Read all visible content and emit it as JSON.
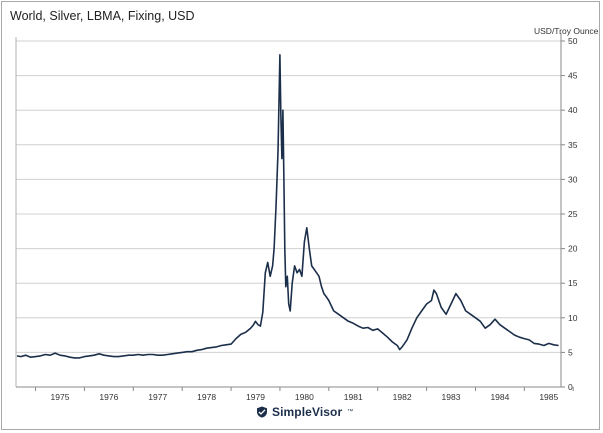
{
  "chart_data": {
    "type": "line",
    "title": "World, Silver, LBMA, Fixing, USD",
    "ylabel": "USD/Troy Ounce",
    "xlabel": "",
    "xlim": [
      1974.6,
      1985.75
    ],
    "ylim": [
      0,
      50
    ],
    "y_axis_side": "right",
    "grid": true,
    "legend": "none",
    "line_color": "#1c2f4a",
    "x_ticks": [
      1975,
      1976,
      1977,
      1978,
      1979,
      1980,
      1981,
      1982,
      1983,
      1984,
      1985
    ],
    "x_tick_labels": [
      "1975",
      "1976",
      "1977",
      "1978",
      "1979",
      "1980",
      "1981",
      "1982",
      "1983",
      "1984",
      "1985"
    ],
    "y_ticks": [
      0,
      5,
      10,
      15,
      20,
      25,
      30,
      35,
      40,
      45,
      50
    ],
    "y_tick_labels": [
      "0",
      "5",
      "10",
      "15",
      "20",
      "25",
      "30",
      "35",
      "40",
      "45",
      "50"
    ],
    "series": [
      {
        "x": [
          1974.62,
          1974.7,
          1974.8,
          1974.9,
          1975.0,
          1975.1,
          1975.2,
          1975.3,
          1975.4,
          1975.5,
          1975.6,
          1975.7,
          1975.8,
          1975.9,
          1976.0,
          1976.1,
          1976.2,
          1976.3,
          1976.4,
          1976.5,
          1976.6,
          1976.7,
          1976.8,
          1976.9,
          1977.0,
          1977.1,
          1977.2,
          1977.3,
          1977.4,
          1977.5,
          1977.6,
          1977.7,
          1977.8,
          1977.9,
          1978.0,
          1978.1,
          1978.2,
          1978.3,
          1978.4,
          1978.5,
          1978.6,
          1978.7,
          1978.8,
          1978.9,
          1979.0,
          1979.1,
          1979.2,
          1979.3,
          1979.4,
          1979.45,
          1979.5,
          1979.55,
          1979.6,
          1979.65,
          1979.7,
          1979.75,
          1979.8,
          1979.85,
          1979.88,
          1979.92,
          1979.96,
          1980.0,
          1980.02,
          1980.04,
          1980.06,
          1980.08,
          1980.1,
          1980.12,
          1980.15,
          1980.18,
          1980.21,
          1980.25,
          1980.3,
          1980.35,
          1980.4,
          1980.45,
          1980.5,
          1980.55,
          1980.6,
          1980.65,
          1980.7,
          1980.75,
          1980.8,
          1980.85,
          1980.9,
          1980.95,
          1981.0,
          1981.1,
          1981.2,
          1981.3,
          1981.4,
          1981.5,
          1981.6,
          1981.7,
          1981.8,
          1981.9,
          1982.0,
          1982.1,
          1982.2,
          1982.3,
          1982.4,
          1982.45,
          1982.5,
          1982.6,
          1982.7,
          1982.8,
          1982.9,
          1983.0,
          1983.1,
          1983.15,
          1983.2,
          1983.3,
          1983.4,
          1983.5,
          1983.6,
          1983.7,
          1983.8,
          1983.9,
          1984.0,
          1984.1,
          1984.2,
          1984.3,
          1984.4,
          1984.5,
          1984.6,
          1984.7,
          1984.8,
          1984.9,
          1985.0,
          1985.1,
          1985.2,
          1985.3,
          1985.4,
          1985.5,
          1985.6,
          1985.7
        ],
        "y": [
          4.5,
          4.4,
          4.6,
          4.3,
          4.4,
          4.5,
          4.7,
          4.6,
          4.9,
          4.6,
          4.5,
          4.3,
          4.2,
          4.2,
          4.4,
          4.5,
          4.6,
          4.8,
          4.6,
          4.5,
          4.4,
          4.4,
          4.5,
          4.6,
          4.6,
          4.7,
          4.6,
          4.7,
          4.7,
          4.6,
          4.6,
          4.7,
          4.8,
          4.9,
          5.0,
          5.1,
          5.1,
          5.3,
          5.4,
          5.6,
          5.7,
          5.8,
          6.0,
          6.1,
          6.2,
          7.0,
          7.6,
          7.9,
          8.5,
          8.9,
          9.5,
          9.0,
          8.8,
          10.8,
          16.5,
          18.0,
          16.0,
          17.5,
          20.0,
          26.0,
          34.0,
          48.0,
          39.0,
          33.0,
          40.0,
          30.0,
          20.0,
          14.5,
          16.0,
          12.0,
          11.0,
          15.0,
          17.5,
          16.5,
          17.0,
          16.0,
          21.0,
          23.0,
          20.0,
          17.5,
          17.0,
          16.5,
          16.0,
          14.5,
          13.5,
          13.0,
          12.5,
          11.0,
          10.5,
          10.0,
          9.5,
          9.2,
          8.8,
          8.5,
          8.6,
          8.2,
          8.4,
          7.8,
          7.2,
          6.5,
          6.0,
          5.4,
          5.8,
          6.8,
          8.5,
          10.0,
          11.0,
          12.0,
          12.5,
          14.0,
          13.5,
          11.5,
          10.5,
          12.0,
          13.5,
          12.5,
          11.0,
          10.5,
          10.0,
          9.5,
          8.5,
          9.0,
          9.8,
          9.0,
          8.5,
          8.0,
          7.5,
          7.2,
          7.0,
          6.8,
          6.3,
          6.2,
          6.0,
          6.3,
          6.1,
          6.0
        ]
      }
    ]
  },
  "footer": {
    "brand_name": "SimpleVisor",
    "brand_mark": "™"
  }
}
